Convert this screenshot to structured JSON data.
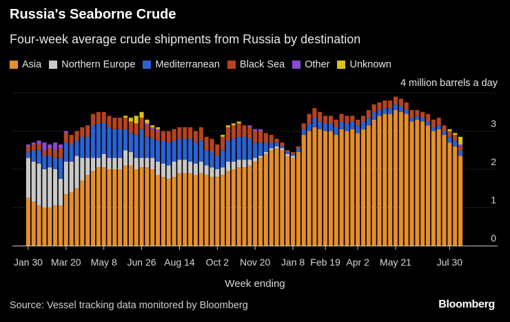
{
  "chart_data": {
    "type": "bar",
    "stacked": true,
    "title": "Russia's Seaborne Crude",
    "subtitle": "Four-week average crude shipments from Russia by destination",
    "unit_label": "4 million barrels a day",
    "xlabel": "Week ending",
    "ylabel": "",
    "ylim": [
      0,
      4
    ],
    "yticks": [
      0,
      1,
      2,
      3
    ],
    "grid": true,
    "legend_position": "top",
    "source": "Source: Vessel tracking data monitored by Bloomberg",
    "brand": "Bloomberg",
    "x_tick_labels": [
      "Jan 30",
      "Mar 20",
      "May 8",
      "Jun 26",
      "Aug 14",
      "Oct 2",
      "Nov 20",
      "Jan 8",
      "Feb 19",
      "Apr 2",
      "May 21",
      "Jul 30"
    ],
    "x_tick_indices": [
      0,
      7,
      14,
      21,
      28,
      35,
      42,
      49,
      55,
      61,
      68,
      78
    ],
    "series": [
      {
        "name": "Asia",
        "color": "#e58e2b",
        "values": [
          1.25,
          1.15,
          1.05,
          1.0,
          1.0,
          1.05,
          1.05,
          1.35,
          1.4,
          1.5,
          1.7,
          1.85,
          1.95,
          2.05,
          2.05,
          2.0,
          2.0,
          2.0,
          2.1,
          2.1,
          2.0,
          2.05,
          2.05,
          2.0,
          1.85,
          1.8,
          1.75,
          1.8,
          1.9,
          1.9,
          1.9,
          1.85,
          1.9,
          1.85,
          1.8,
          1.8,
          1.85,
          1.95,
          2.0,
          2.05,
          2.05,
          2.1,
          2.2,
          2.3,
          2.4,
          2.5,
          2.55,
          2.5,
          2.35,
          2.3,
          2.45,
          2.9,
          3.0,
          3.1,
          3.05,
          3.0,
          3.0,
          2.9,
          3.05,
          3.0,
          3.05,
          2.95,
          3.05,
          3.15,
          3.3,
          3.4,
          3.45,
          3.45,
          3.55,
          3.5,
          3.45,
          3.25,
          3.3,
          3.25,
          3.15,
          3.0,
          3.05,
          2.9,
          2.7,
          2.6,
          2.35
        ]
      },
      {
        "name": "Northern Europe",
        "color": "#c9c9c9",
        "values": [
          1.05,
          1.05,
          1.1,
          1.0,
          1.05,
          0.95,
          0.7,
          0.85,
          0.8,
          0.85,
          0.6,
          0.45,
          0.35,
          0.25,
          0.35,
          0.3,
          0.3,
          0.3,
          0.4,
          0.35,
          0.3,
          0.25,
          0.25,
          0.3,
          0.35,
          0.35,
          0.35,
          0.4,
          0.35,
          0.35,
          0.3,
          0.3,
          0.3,
          0.25,
          0.25,
          0.2,
          0.2,
          0.25,
          0.2,
          0.2,
          0.2,
          0.15,
          0.1,
          0.05,
          0.05,
          0.05,
          0.05,
          0.05,
          0.05,
          0.05,
          0.0,
          0.0,
          0.0,
          0.0,
          0.0,
          0.0,
          0.0,
          0.0,
          0.0,
          0.0,
          0.0,
          0.0,
          0.0,
          0.0,
          0.0,
          0.0,
          0.0,
          0.0,
          0.0,
          0.0,
          0.0,
          0.0,
          0.0,
          0.0,
          0.0,
          0.0,
          0.0,
          0.0,
          0.0,
          0.0,
          0.0
        ]
      },
      {
        "name": "Mediterranean",
        "color": "#2a62d1",
        "values": [
          0.15,
          0.3,
          0.35,
          0.35,
          0.3,
          0.3,
          0.55,
          0.5,
          0.45,
          0.4,
          0.55,
          0.55,
          0.85,
          0.9,
          0.8,
          0.8,
          0.75,
          0.75,
          0.55,
          0.5,
          0.6,
          0.75,
          0.55,
          0.5,
          0.55,
          0.6,
          0.6,
          0.55,
          0.55,
          0.55,
          0.6,
          0.55,
          0.55,
          0.4,
          0.4,
          0.35,
          0.45,
          0.55,
          0.6,
          0.6,
          0.6,
          0.55,
          0.4,
          0.35,
          0.25,
          0.15,
          0.1,
          0.05,
          0.05,
          0.05,
          0.1,
          0.15,
          0.2,
          0.25,
          0.2,
          0.2,
          0.2,
          0.2,
          0.2,
          0.2,
          0.2,
          0.2,
          0.2,
          0.2,
          0.2,
          0.15,
          0.15,
          0.15,
          0.15,
          0.15,
          0.1,
          0.1,
          0.1,
          0.1,
          0.1,
          0.1,
          0.1,
          0.1,
          0.15,
          0.15,
          0.15
        ]
      },
      {
        "name": "Black Sea",
        "color": "#b5441f",
        "values": [
          0.15,
          0.15,
          0.15,
          0.15,
          0.2,
          0.2,
          0.25,
          0.25,
          0.25,
          0.25,
          0.25,
          0.3,
          0.3,
          0.3,
          0.3,
          0.3,
          0.3,
          0.3,
          0.3,
          0.3,
          0.3,
          0.3,
          0.3,
          0.25,
          0.25,
          0.25,
          0.3,
          0.3,
          0.3,
          0.3,
          0.3,
          0.3,
          0.35,
          0.35,
          0.35,
          0.3,
          0.35,
          0.35,
          0.35,
          0.35,
          0.3,
          0.3,
          0.3,
          0.3,
          0.25,
          0.2,
          0.1,
          0.1,
          0.05,
          0.05,
          0.05,
          0.15,
          0.25,
          0.25,
          0.25,
          0.2,
          0.2,
          0.2,
          0.2,
          0.2,
          0.15,
          0.15,
          0.15,
          0.2,
          0.2,
          0.2,
          0.2,
          0.2,
          0.2,
          0.2,
          0.2,
          0.2,
          0.15,
          0.15,
          0.2,
          0.2,
          0.2,
          0.15,
          0.15,
          0.15,
          0.1
        ]
      },
      {
        "name": "Other",
        "color": "#8b4bd0",
        "values": [
          0.05,
          0.05,
          0.1,
          0.2,
          0.1,
          0.2,
          0.1,
          0.05,
          0.0,
          0.0,
          0.0,
          0.0,
          0.0,
          0.0,
          0.0,
          0.0,
          0.0,
          0.0,
          0.0,
          0.0,
          0.0,
          0.0,
          0.05,
          0.05,
          0.05,
          0.0,
          0.0,
          0.0,
          0.0,
          0.0,
          0.0,
          0.0,
          0.0,
          0.0,
          0.0,
          0.0,
          0.0,
          0.0,
          0.0,
          0.0,
          0.0,
          0.05,
          0.05,
          0.05,
          0.0,
          0.0,
          0.0,
          0.0,
          0.0,
          0.0,
          0.0,
          0.0,
          0.0,
          0.0,
          0.0,
          0.0,
          0.0,
          0.0,
          0.0,
          0.0,
          0.0,
          0.0,
          0.0,
          0.0,
          0.0,
          0.0,
          0.0,
          0.0,
          0.0,
          0.0,
          0.0,
          0.0,
          0.0,
          0.0,
          0.0,
          0.0,
          0.0,
          0.0,
          0.0,
          0.0,
          0.05
        ]
      },
      {
        "name": "Unknown",
        "color": "#d9c21a",
        "values": [
          0.0,
          0.0,
          0.0,
          0.0,
          0.0,
          0.0,
          0.0,
          0.0,
          0.0,
          0.0,
          0.0,
          0.0,
          0.0,
          0.0,
          0.0,
          0.0,
          0.0,
          0.0,
          0.05,
          0.1,
          0.2,
          0.15,
          0.1,
          0.05,
          0.05,
          0.0,
          0.0,
          0.0,
          0.0,
          0.0,
          0.0,
          0.0,
          0.0,
          0.0,
          0.0,
          0.0,
          0.05,
          0.05,
          0.05,
          0.05,
          0.0,
          0.0,
          0.0,
          0.0,
          0.0,
          0.0,
          0.0,
          0.0,
          0.0,
          0.0,
          0.0,
          0.0,
          0.0,
          0.0,
          0.0,
          0.0,
          0.0,
          0.0,
          0.0,
          0.0,
          0.0,
          0.0,
          0.0,
          0.0,
          0.0,
          0.0,
          0.0,
          0.0,
          0.0,
          0.0,
          0.0,
          0.0,
          0.0,
          0.0,
          0.0,
          0.0,
          0.0,
          0.0,
          0.05,
          0.05,
          0.2
        ]
      }
    ]
  }
}
